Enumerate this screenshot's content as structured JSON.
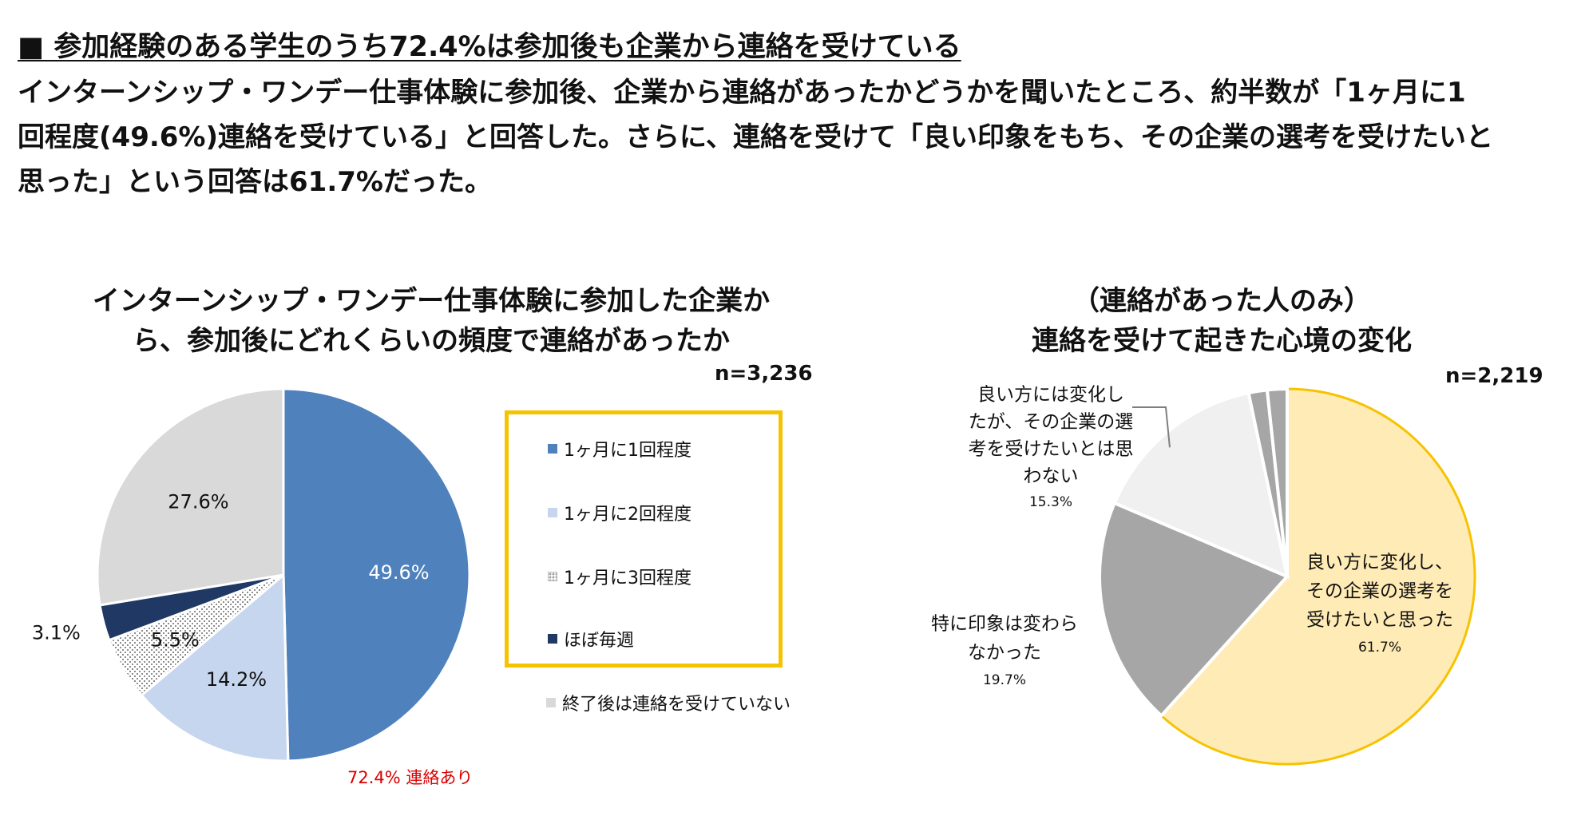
{
  "heading": "■ 参加経験のある学生のうち72.4%は参加後も企業から連絡を受けている",
  "body_lines": [
    "インターンシップ・ワンデー仕事体験に参加後、企業から連絡があったかどうかを聞いたところ、約半数が「1ヶ月に1",
    "回程度(49.6%)連絡を受けている」と回答した。さらに、連絡を受けて「良い印象をもち、その企業の選考を受けたいと",
    "思った」という回答は61.7%だった。"
  ],
  "colors": {
    "dark_blue": "#4F81BD",
    "light_blue": "#C6D6EE",
    "navy": "#1F3864",
    "light_gray": "#D9D9D9",
    "yellow": "#FFEBB5",
    "yellow_border": "#F6C300",
    "mid_gray": "#A6A6A6",
    "very_light_gray": "#F0F0F0",
    "callout_red": "#D90000"
  },
  "callout": "72.4% 連絡あり",
  "chart_data": [
    {
      "type": "pie",
      "title_lines": [
        "インターンシップ・ワンデー仕事体験に参加した企業か",
        "ら、参加後にどれくらいの頻度で連絡があったか"
      ],
      "n": "n=3,236",
      "start": "12 o'clock, clockwise",
      "legend_placement": "right",
      "slices": [
        {
          "label": "1ヶ月に1回程度",
          "value": 49.6,
          "display": "49.6%",
          "color": "#4F81BD",
          "text_color": "#ffffff"
        },
        {
          "label": "1ヶ月に2回程度",
          "value": 14.2,
          "display": "14.2%",
          "color": "#C6D6EE",
          "text_color": "#111111"
        },
        {
          "label": "1ヶ月に3回程度",
          "value": 5.5,
          "display": "5.5%",
          "color": "hatch",
          "text_color": "#111111"
        },
        {
          "label": "ほぼ毎週",
          "value": 3.1,
          "display": "3.1%",
          "color": "#1F3864",
          "text_color": "#111111"
        },
        {
          "label": "終了後は連絡を受けていない",
          "value": 27.6,
          "display": "27.6%",
          "color": "#D9D9D9",
          "text_color": "#111111"
        }
      ]
    },
    {
      "type": "pie",
      "title_lines": [
        "（連絡があった人のみ）",
        "連絡を受けて起きた心境の変化"
      ],
      "n": "n=2,219",
      "start": "12 o'clock, clockwise",
      "slices": [
        {
          "label_lines": [
            "良い方に変化し、",
            "その企業の選考を",
            "受けたいと思った"
          ],
          "value": 61.7,
          "display": "61.7%",
          "color": "#FFEBB5"
        },
        {
          "label_lines": [
            "特に印象は変わら",
            "なかった"
          ],
          "value": 19.7,
          "display": "19.7%",
          "color": "#A6A6A6"
        },
        {
          "label_lines": [
            "良い方には変化し",
            "たが、その企業の選",
            "考を受けたいとは思",
            "わない"
          ],
          "value": 15.3,
          "display": "15.3%",
          "color": "#F0F0F0"
        },
        {
          "value": 1.6,
          "color": "#A6A6A6"
        },
        {
          "value": 1.7,
          "color": "#A6A6A6"
        }
      ]
    }
  ]
}
